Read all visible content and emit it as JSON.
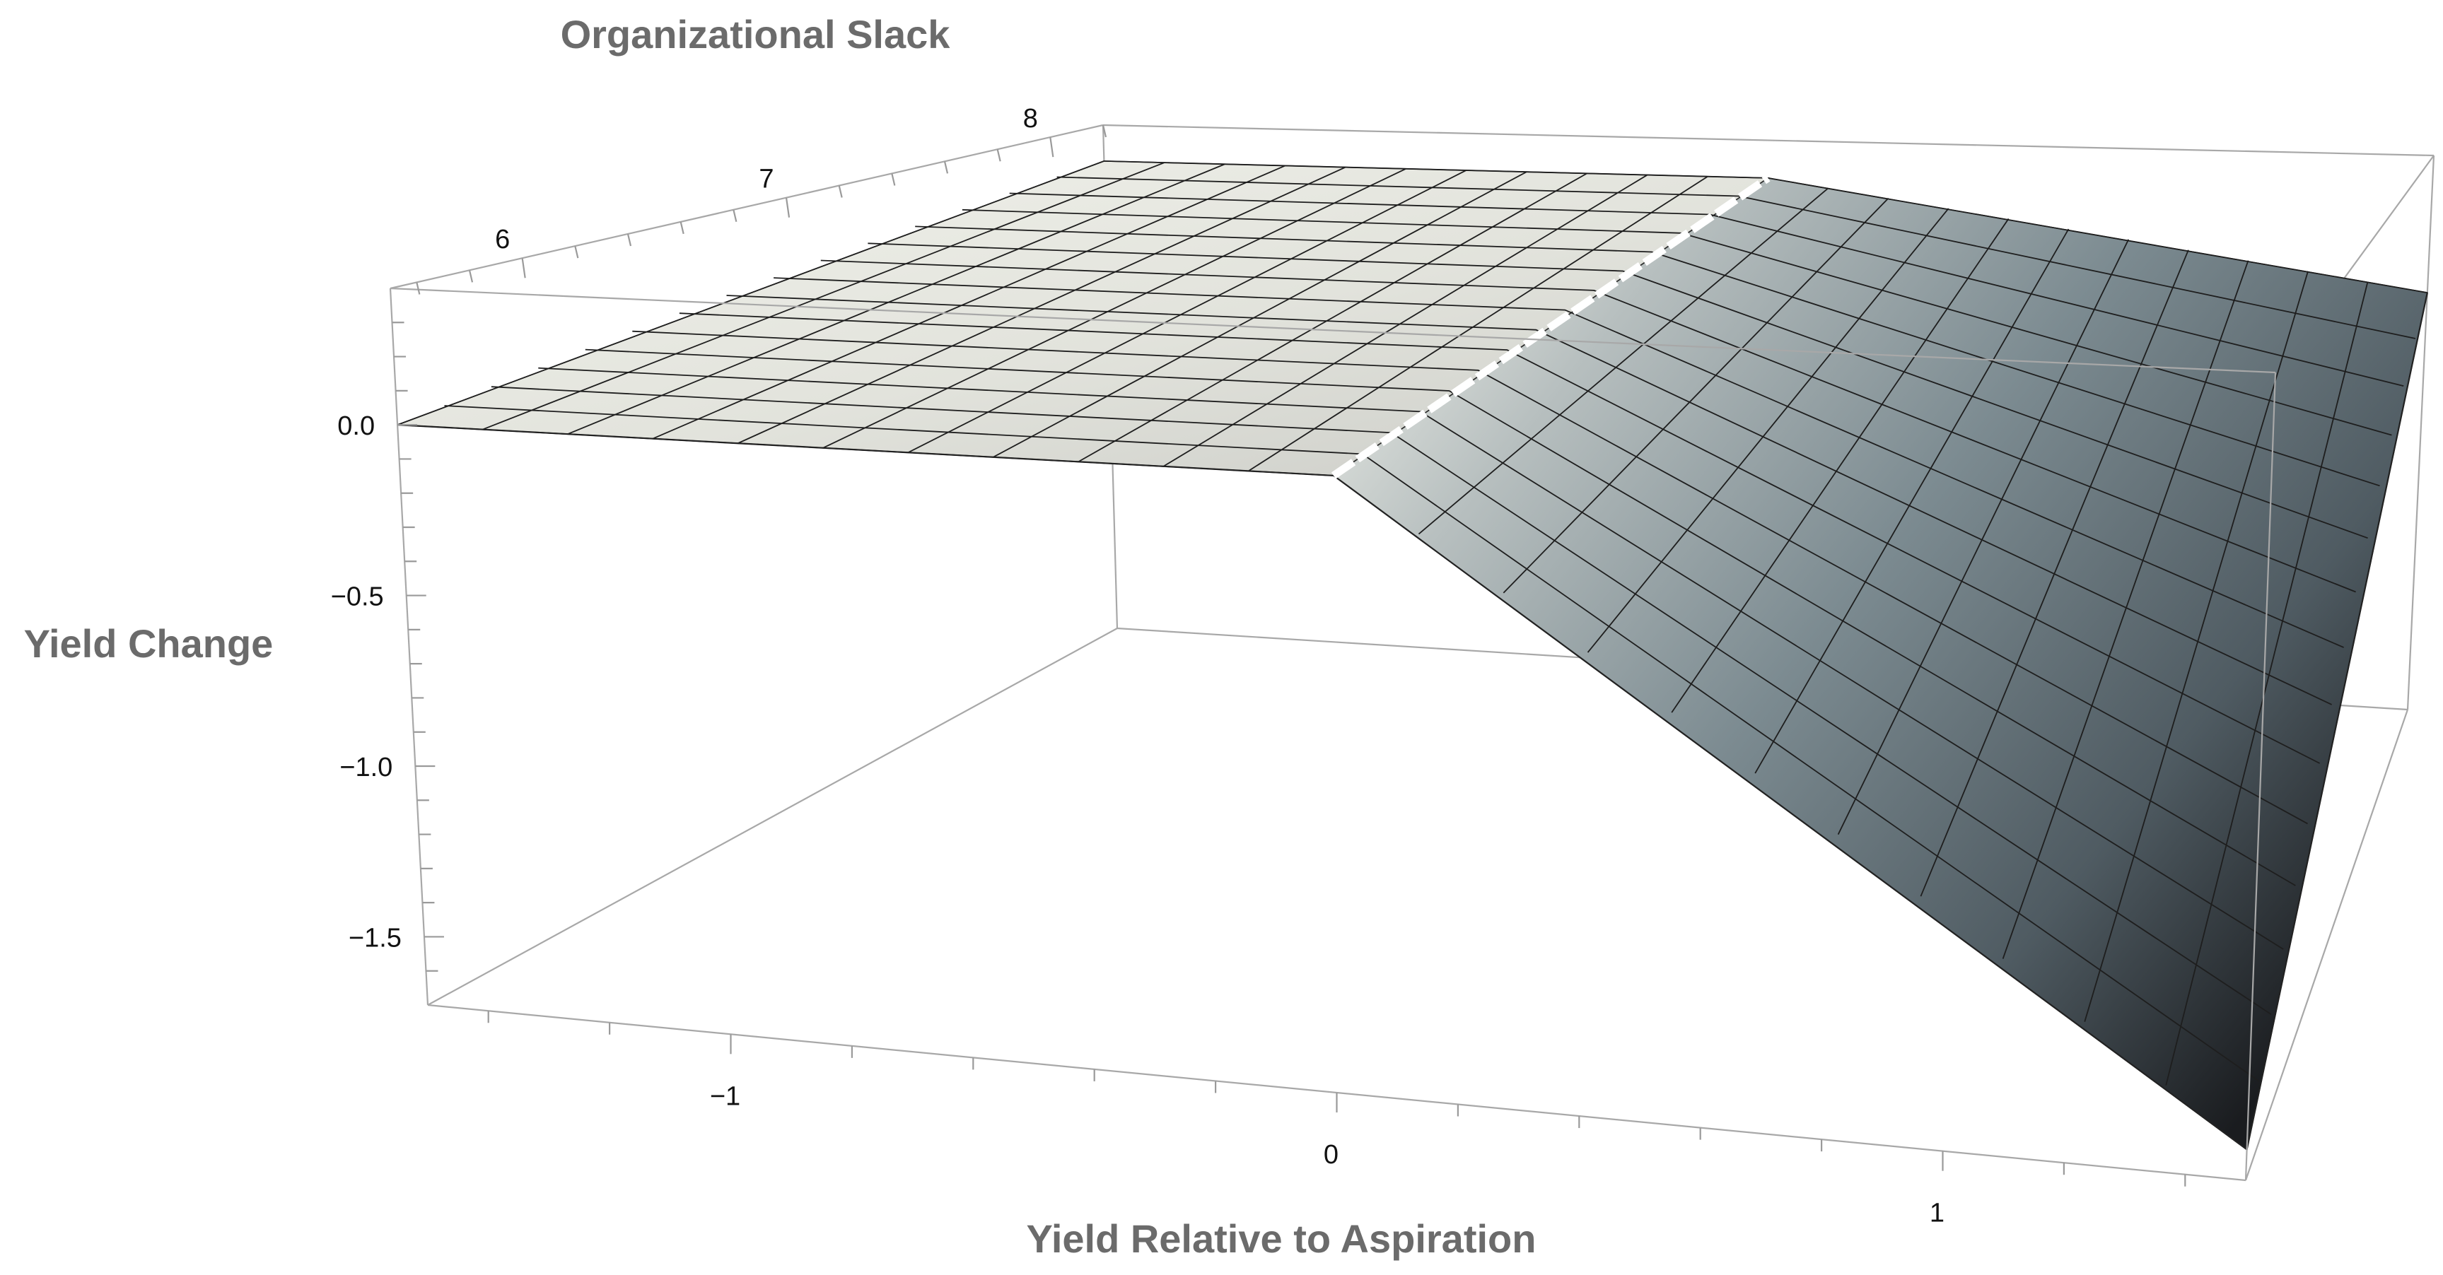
{
  "chart_data": {
    "type": "surface3d",
    "title": "",
    "xlabel": "Yield Relative to Aspiration",
    "ylabel": "Organizational Slack",
    "zlabel": "Yield Change",
    "xlim": [
      -1.5,
      1.5
    ],
    "ylim": [
      5.5,
      8.2
    ],
    "zlim": [
      -1.7,
      0.4
    ],
    "x_ticks": [
      {
        "value": -1,
        "label": "−1"
      },
      {
        "value": 0,
        "label": "0"
      },
      {
        "value": 1,
        "label": "1"
      }
    ],
    "y_ticks": [
      {
        "value": 6,
        "label": "6"
      },
      {
        "value": 7,
        "label": "7"
      },
      {
        "value": 8,
        "label": "8"
      }
    ],
    "z_ticks": [
      {
        "value": 0.0,
        "label": "0.0"
      },
      {
        "value": -0.5,
        "label": "−0.5"
      },
      {
        "value": -1.0,
        "label": "−1.0"
      },
      {
        "value": -1.5,
        "label": "−1.5"
      }
    ],
    "surface": {
      "description_of_shape": "flat for x < 0, declining linearly for x > 0",
      "flat_region": {
        "x_range": [
          -1.5,
          0
        ],
        "z_at_y_min": 0.0,
        "z_at_y_max": 0.25
      },
      "sloped_region": {
        "x_range": [
          0,
          1.5
        ],
        "z_at_x_max_y_min": -1.62,
        "z_at_x_max_y_max": -0.12
      },
      "y_range": [
        5.5,
        8.2
      ]
    },
    "grid": false,
    "legend": "none"
  }
}
